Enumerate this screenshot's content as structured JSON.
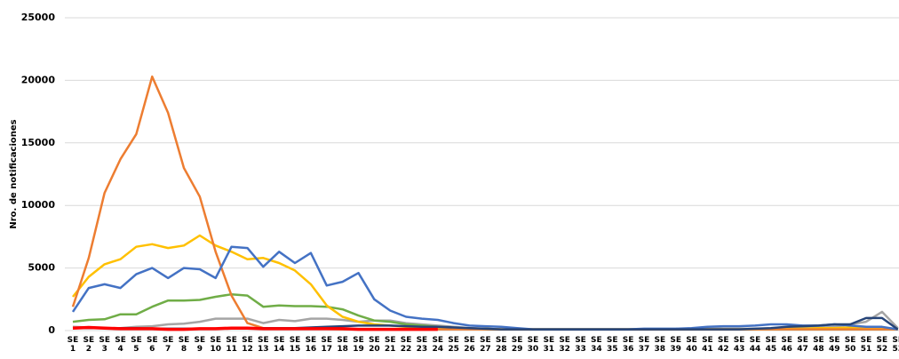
{
  "chart_data": {
    "type": "line",
    "y_label": "Nro. de notificaciones",
    "categories": [
      "SE 1",
      "SE 2",
      "SE 3",
      "SE 4",
      "SE 5",
      "SE 6",
      "SE 7",
      "SE 8",
      "SE 9",
      "SE 10",
      "SE 11",
      "SE 12",
      "SE 13",
      "SE 14",
      "SE 15",
      "SE 16",
      "SE 17",
      "SE 18",
      "SE 19",
      "SE 20",
      "SE 21",
      "SE 22",
      "SE 23",
      "SE 24",
      "SE 25",
      "SE 26",
      "SE 27",
      "SE 28",
      "SE 29",
      "SE 30",
      "SE 31",
      "SE 32",
      "SE 33",
      "SE 34",
      "SE 35",
      "SE 36",
      "SE 37",
      "SE 38",
      "SE 39",
      "SE 40",
      "SE 41",
      "SE 42",
      "SE 43",
      "SE 44",
      "SE 45",
      "SE 46",
      "SE 47",
      "SE 48",
      "SE 49",
      "SE 50",
      "SE 51",
      "SE 52",
      "SE 53"
    ],
    "ylim": [
      0,
      25000
    ],
    "yticks": [
      0,
      5000,
      10000,
      15000,
      20000,
      25000
    ],
    "grid": true,
    "series": [
      {
        "color": "#a5a5a5",
        "values": [
          300,
          250,
          200,
          200,
          300,
          350,
          500,
          550,
          700,
          950,
          950,
          950,
          600,
          850,
          750,
          950,
          950,
          850,
          700,
          800,
          800,
          600,
          500,
          400,
          300,
          200,
          150,
          100,
          100,
          100,
          100,
          100,
          100,
          100,
          100,
          100,
          100,
          100,
          100,
          100,
          150,
          150,
          150,
          150,
          150,
          150,
          200,
          250,
          300,
          500,
          700,
          1500,
          200
        ]
      },
      {
        "color": "#70ad47",
        "values": [
          700,
          850,
          900,
          1300,
          1300,
          1900,
          2400,
          2400,
          2450,
          2700,
          2900,
          2800,
          1900,
          2000,
          1950,
          1950,
          1900,
          1700,
          1200,
          800,
          700,
          500,
          400,
          300,
          200,
          150,
          100,
          100,
          100,
          100,
          100,
          100,
          100,
          100,
          100,
          100,
          100,
          100,
          100,
          100,
          100,
          100,
          100,
          100,
          100,
          100,
          100,
          100,
          100,
          100,
          100,
          100,
          100
        ]
      },
      {
        "color": "#ffc000",
        "values": [
          2700,
          4300,
          5300,
          5700,
          6700,
          6900,
          6600,
          6800,
          7600,
          6800,
          6300,
          5700,
          5800,
          5400,
          4800,
          3700,
          2000,
          1100,
          700,
          500,
          400,
          300,
          250,
          200,
          200,
          150,
          150,
          100,
          100,
          100,
          100,
          100,
          100,
          100,
          100,
          100,
          100,
          100,
          100,
          100,
          100,
          100,
          100,
          100,
          150,
          150,
          150,
          200,
          200,
          250,
          250,
          200,
          100
        ]
      },
      {
        "color": "#ed7d31",
        "values": [
          1900,
          5800,
          11000,
          13700,
          15700,
          20300,
          17400,
          13000,
          10700,
          6300,
          2800,
          600,
          200,
          150,
          150,
          150,
          120,
          100,
          100,
          100,
          100,
          100,
          100,
          100,
          100,
          100,
          100,
          100,
          100,
          100,
          100,
          100,
          100,
          100,
          100,
          100,
          100,
          100,
          100,
          100,
          100,
          100,
          100,
          100,
          100,
          100,
          100,
          100,
          100,
          100,
          100,
          100,
          100
        ]
      },
      {
        "color": "#4472c4",
        "values": [
          1500,
          3400,
          3700,
          3400,
          4500,
          5000,
          4200,
          5000,
          4900,
          4200,
          6700,
          6600,
          5100,
          6300,
          5400,
          6200,
          3600,
          3900,
          4600,
          2500,
          1600,
          1100,
          950,
          850,
          600,
          400,
          350,
          300,
          200,
          100,
          100,
          100,
          100,
          100,
          100,
          100,
          150,
          150,
          150,
          200,
          300,
          350,
          350,
          400,
          500,
          500,
          400,
          400,
          500,
          400,
          300,
          300,
          100
        ]
      },
      {
        "color": "#264478",
        "values": [
          200,
          200,
          200,
          200,
          200,
          150,
          150,
          150,
          150,
          150,
          200,
          200,
          200,
          200,
          200,
          250,
          300,
          350,
          400,
          400,
          400,
          350,
          300,
          300,
          250,
          200,
          150,
          100,
          100,
          100,
          100,
          100,
          100,
          100,
          100,
          100,
          100,
          100,
          100,
          100,
          100,
          100,
          100,
          150,
          200,
          300,
          350,
          400,
          500,
          500,
          1000,
          1000,
          100
        ]
      },
      {
        "color": "#ff0000",
        "values": [
          200,
          250,
          200,
          150,
          150,
          150,
          100,
          100,
          150,
          150,
          200,
          200,
          150,
          150,
          150,
          150,
          150,
          150,
          100,
          100,
          100,
          100,
          100,
          100,
          null,
          null,
          null,
          null,
          null,
          null,
          null,
          null,
          null,
          null,
          null,
          null,
          null,
          null,
          null,
          null,
          null,
          null,
          null,
          null,
          null,
          null,
          null,
          null,
          null,
          null,
          null,
          null,
          null
        ]
      }
    ]
  }
}
